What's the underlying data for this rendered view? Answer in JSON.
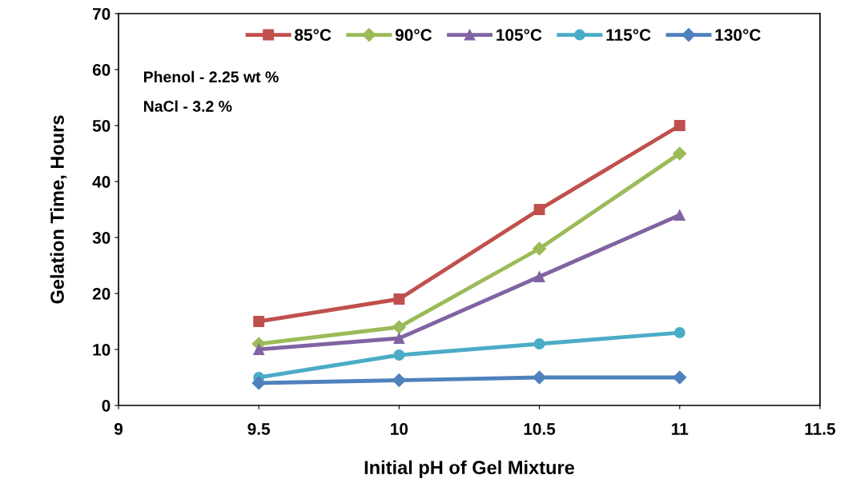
{
  "chart_data": {
    "type": "line",
    "xlabel": "Initial pH of Gel Mixture",
    "ylabel": "Gelation Time, Hours",
    "x": [
      9.5,
      10,
      10.5,
      11
    ],
    "series": [
      {
        "name": "85°C",
        "color": "#c0504d",
        "marker": "square",
        "values": [
          15,
          19,
          35,
          50
        ]
      },
      {
        "name": "90°C",
        "color": "#9bbb59",
        "marker": "diamond",
        "values": [
          11,
          14,
          28,
          45
        ]
      },
      {
        "name": "105°C",
        "color": "#8064a2",
        "marker": "triangle",
        "values": [
          10,
          12,
          23,
          34
        ]
      },
      {
        "name": "115°C",
        "color": "#4bacc6",
        "marker": "circle",
        "values": [
          5,
          9,
          11,
          13
        ]
      },
      {
        "name": "130°C",
        "color": "#4f81bd",
        "marker": "diamond",
        "values": [
          4,
          4.5,
          5,
          5
        ]
      }
    ],
    "xlim": [
      9,
      11.5
    ],
    "xticks": [
      9,
      9.5,
      10,
      10.5,
      11,
      11.5
    ],
    "ylim": [
      0,
      70
    ],
    "yticks": [
      0,
      10,
      20,
      30,
      40,
      50,
      60,
      70
    ],
    "grid": false,
    "legend": "top",
    "annotations": [
      "Phenol - 2.25 wt %",
      "NaCl - 3.2 %"
    ]
  }
}
